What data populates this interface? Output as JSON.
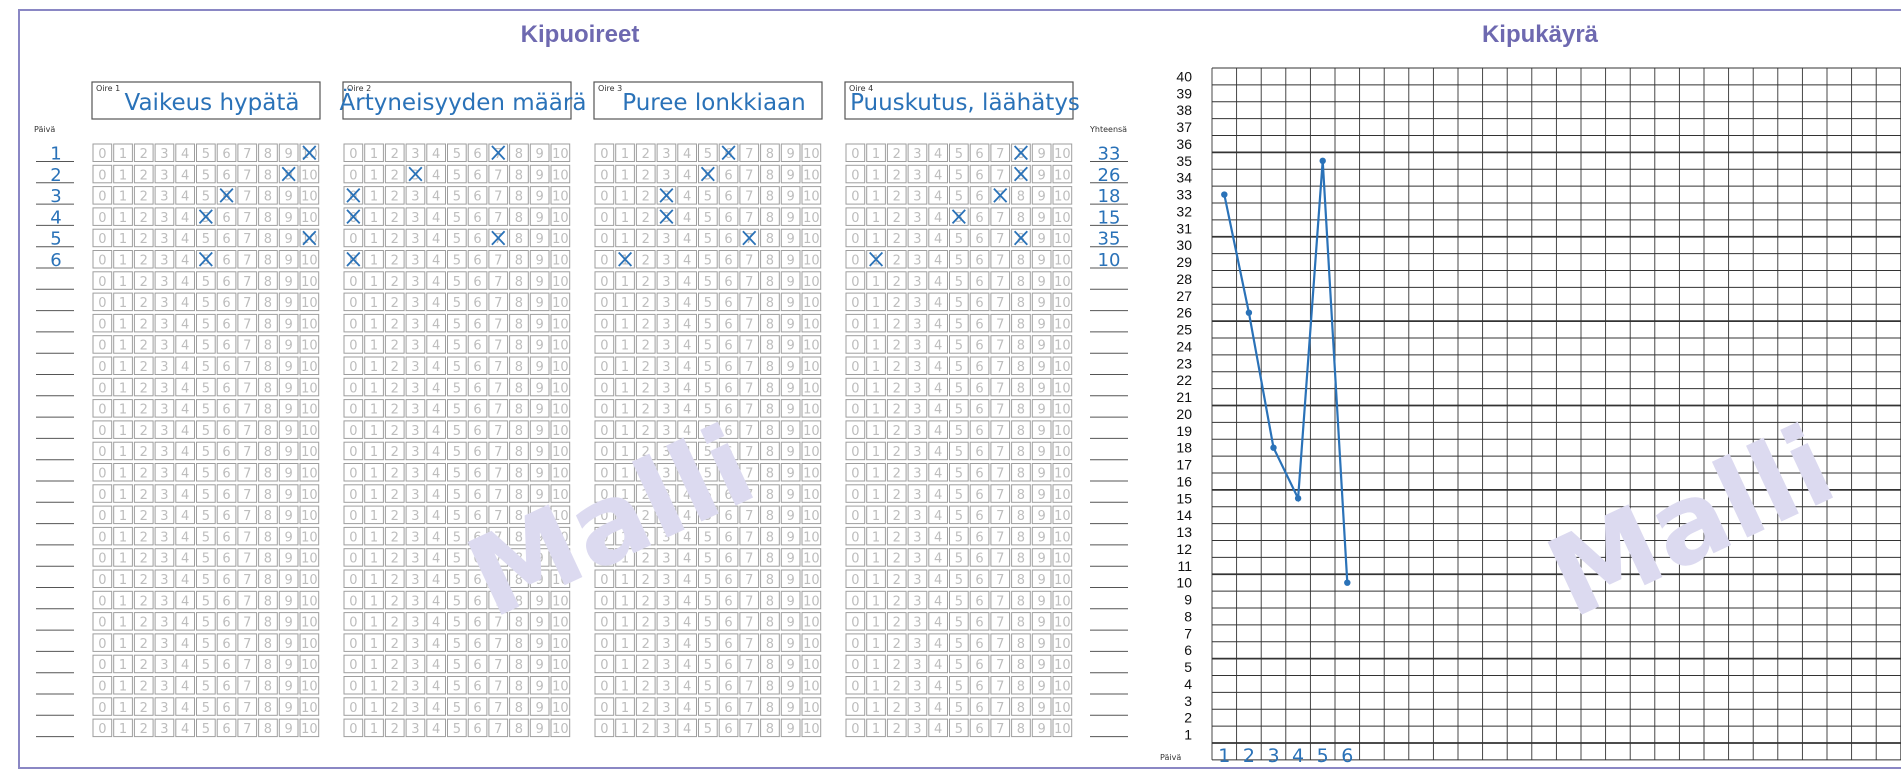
{
  "left_panel": {
    "title": "Kipuoireet",
    "paiva_label": "Päivä",
    "yhteensa_label": "Yhteensä",
    "days": [
      "1",
      "2",
      "3",
      "4",
      "5",
      "6"
    ],
    "totals": [
      "33",
      "26",
      "18",
      "15",
      "35",
      "10"
    ],
    "scale_values": [
      "0",
      "1",
      "2",
      "3",
      "4",
      "5",
      "6",
      "7",
      "8",
      "9",
      "10"
    ],
    "symptoms": [
      {
        "number_label": "Oire 1",
        "name": "Vaikeus hypätä",
        "marks": [
          10,
          9,
          6,
          5,
          10,
          5
        ]
      },
      {
        "number_label": "Oire 2",
        "name": "Ärtyneisyyden määrä",
        "marks": [
          7,
          3,
          0,
          0,
          7,
          0
        ]
      },
      {
        "number_label": "Oire 3",
        "name": "Puree lonkkiaan",
        "marks": [
          6,
          5,
          3,
          3,
          7,
          1
        ]
      },
      {
        "number_label": "Oire 4",
        "name": "Puuskutus, läähätys",
        "marks": [
          8,
          8,
          7,
          5,
          8,
          1
        ]
      }
    ],
    "watermark": "Malli"
  },
  "chart_data": {
    "type": "line",
    "title": "Kipukäyrä",
    "xlabel": "Päivä",
    "ylabel": "",
    "x": [
      "1",
      "2",
      "3",
      "4",
      "5",
      "6"
    ],
    "series": [
      {
        "values": [
          33,
          26,
          18,
          15,
          35,
          10
        ]
      }
    ],
    "ylim": [
      1,
      40
    ],
    "yticks": [
      1,
      2,
      3,
      4,
      5,
      6,
      7,
      8,
      9,
      10,
      11,
      12,
      13,
      14,
      15,
      16,
      17,
      18,
      19,
      20,
      21,
      22,
      23,
      24,
      25,
      26,
      27,
      28,
      29,
      30,
      31,
      32,
      33,
      34,
      35,
      36,
      37,
      38,
      39,
      40
    ],
    "grid": true,
    "watermark": "Malli",
    "line_color": "#2a72b8"
  }
}
